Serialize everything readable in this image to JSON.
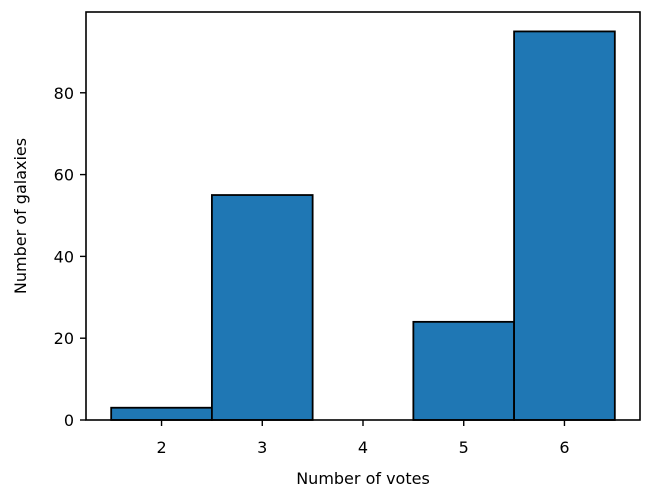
{
  "chart_data": {
    "type": "bar",
    "categories": [
      "2",
      "3",
      "4",
      "5",
      "6"
    ],
    "values": [
      3,
      55,
      0,
      24,
      95
    ],
    "xlabel": "Number of votes",
    "ylabel": "Number of galaxies",
    "xlim": [
      1.25,
      6.75
    ],
    "ylim": [
      0,
      99.75
    ],
    "yticks": [
      0,
      20,
      40,
      60,
      80
    ],
    "xticks": [
      2,
      3,
      4,
      5,
      6
    ],
    "bar_color": "#1f77b4",
    "edge_color": "#000000",
    "grid": false,
    "legend": "none"
  }
}
